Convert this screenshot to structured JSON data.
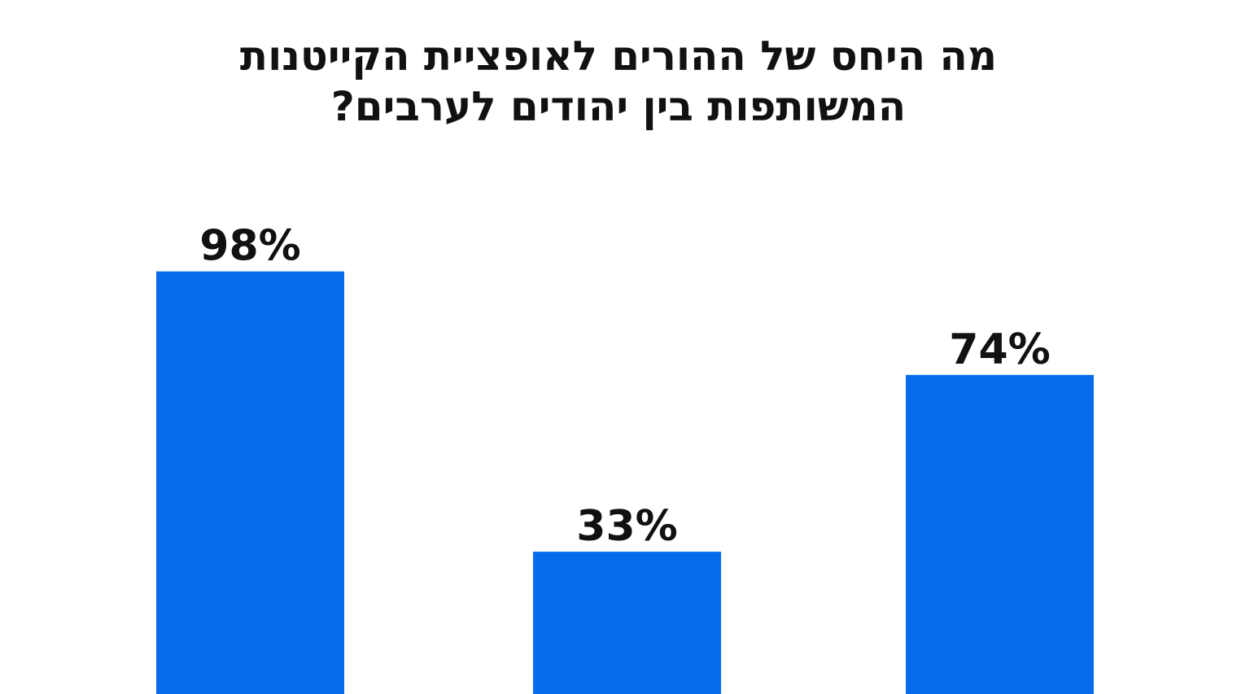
{
  "chart_data": {
    "type": "bar",
    "title_lines": [
      "מה היחס של ההורים לאופציית הקייטנות",
      "המשותפות בין יהודים לערבים?"
    ],
    "categories": [
      "",
      "",
      ""
    ],
    "values": [
      98,
      33,
      74
    ],
    "value_labels": [
      "98%",
      "33%",
      "74%"
    ],
    "unit": "%",
    "ylim": [
      0,
      100
    ],
    "grid": false,
    "legend": "none",
    "bar_color": "#076BEB",
    "text_color": "#111111"
  }
}
